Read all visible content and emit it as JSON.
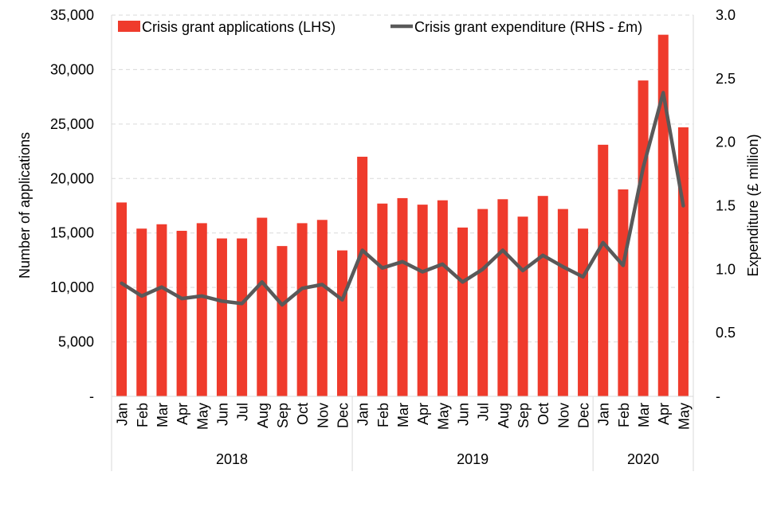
{
  "chart_data": {
    "type": "bar",
    "title": "",
    "ylabel": "Number  of applications",
    "y2label": "Expenditure  (£ million)",
    "ylim": [
      0,
      35000
    ],
    "y2lim": [
      0,
      3.0
    ],
    "grid": true,
    "legend_position": "top",
    "left_ticks": [
      "-",
      "5,000",
      "10,000",
      "15,000",
      "20,000",
      "25,000",
      "30,000",
      "35,000"
    ],
    "right_ticks": [
      "-",
      "0.5",
      "1.0",
      "1.5",
      "2.0",
      "2.5",
      "3.0"
    ],
    "categories": [
      "Jan",
      "Feb",
      "Mar",
      "Apr",
      "May",
      "Jun",
      "Jul",
      "Aug",
      "Sep",
      "Oct",
      "Nov",
      "Dec",
      "Jan",
      "Feb",
      "Mar",
      "Apr",
      "May",
      "Jun",
      "Jul",
      "Aug",
      "Sep",
      "Oct",
      "Nov",
      "Dec",
      "Jan",
      "Feb",
      "Mar",
      "Apr",
      "May"
    ],
    "groups": [
      {
        "label": "2018",
        "count": 12
      },
      {
        "label": "2019",
        "count": 12
      },
      {
        "label": "2020",
        "count": 5
      }
    ],
    "series": [
      {
        "name": "Crisis grant applications (LHS)",
        "type": "bar",
        "axis": "left",
        "color": "#ef3b2c",
        "values": [
          17800,
          15400,
          15800,
          15200,
          15900,
          14500,
          14500,
          16400,
          13800,
          15900,
          16200,
          13400,
          22000,
          17700,
          18200,
          17600,
          18000,
          15500,
          17200,
          18100,
          16500,
          18400,
          17200,
          15400,
          23100,
          19000,
          29000,
          33200,
          24700
        ]
      },
      {
        "name": "Crisis grant expenditure (RHS - £m)",
        "type": "line",
        "axis": "right",
        "color": "#595959",
        "values": [
          0.89,
          0.79,
          0.86,
          0.77,
          0.79,
          0.75,
          0.73,
          0.9,
          0.72,
          0.85,
          0.88,
          0.76,
          1.15,
          1.01,
          1.06,
          0.98,
          1.04,
          0.9,
          1.0,
          1.15,
          0.99,
          1.11,
          1.02,
          0.94,
          1.21,
          1.03,
          1.8,
          2.39,
          1.5
        ]
      }
    ]
  }
}
